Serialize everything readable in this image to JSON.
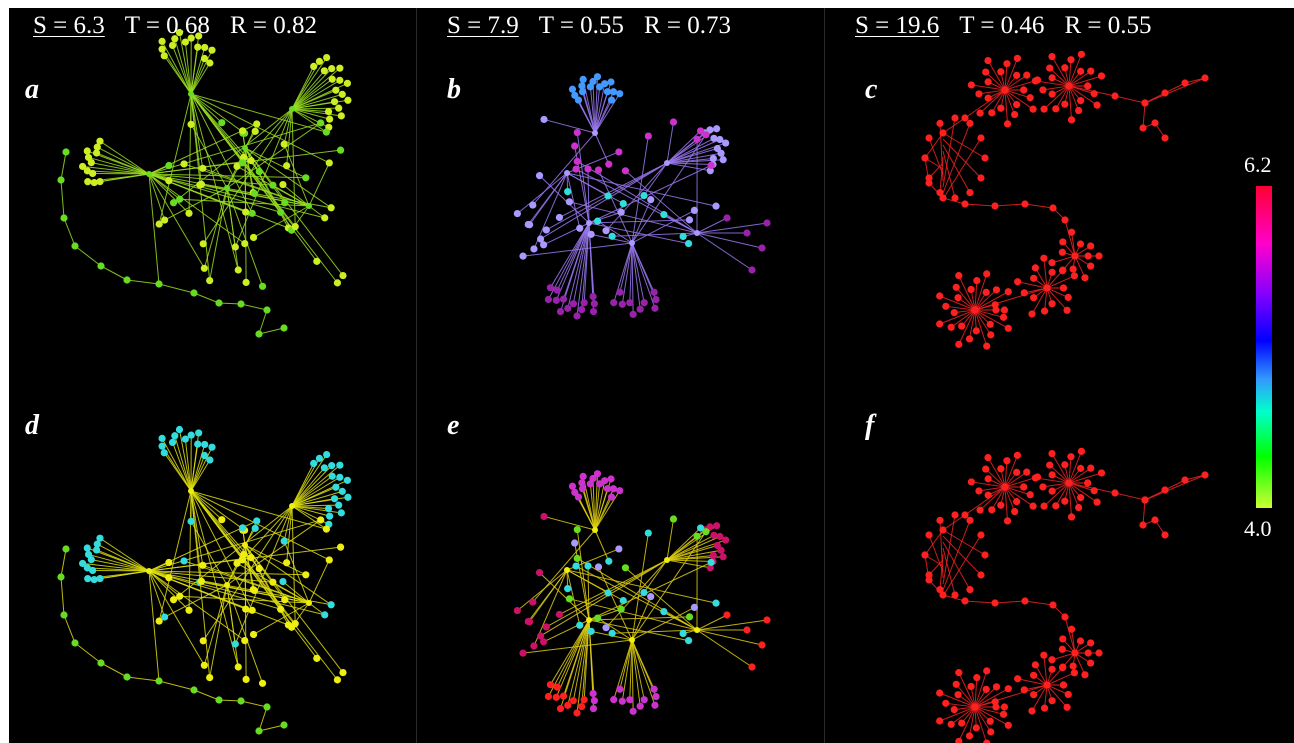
{
  "panels_header": [
    {
      "s_label": "S = 6.3",
      "t_label": "T = 0.68",
      "r_label": "R = 0.82"
    },
    {
      "s_label": "S = 7.9",
      "t_label": "T = 0.55",
      "r_label": "R = 0.73"
    },
    {
      "s_label": "S = 19.6",
      "t_label": "T = 0.46",
      "r_label": "R = 0.55"
    }
  ],
  "panels": [
    {
      "label": "a",
      "network": "net1",
      "coloring": "gradient-a"
    },
    {
      "label": "b",
      "network": "net2",
      "coloring": "gradient-b"
    },
    {
      "label": "c",
      "network": "net3",
      "coloring": "uniform-red"
    },
    {
      "label": "d",
      "network": "net1",
      "coloring": "clusters-d"
    },
    {
      "label": "e",
      "network": "net2",
      "coloring": "clusters-e"
    },
    {
      "label": "f",
      "network": "net3",
      "coloring": "uniform-red"
    }
  ],
  "colorbar": {
    "max_label": "6.2",
    "min_label": "4.0"
  },
  "colors": {
    "background": "#000000",
    "red": "#ff2020",
    "yellow_green": "#ccee22",
    "green": "#66dd22",
    "cyan": "#33dddd",
    "yellow": "#eeee11",
    "blue": "#4499ff",
    "lavender": "#aa99ff",
    "magenta": "#cc33cc",
    "purple": "#9922aa",
    "crimson": "#cc1166"
  }
}
